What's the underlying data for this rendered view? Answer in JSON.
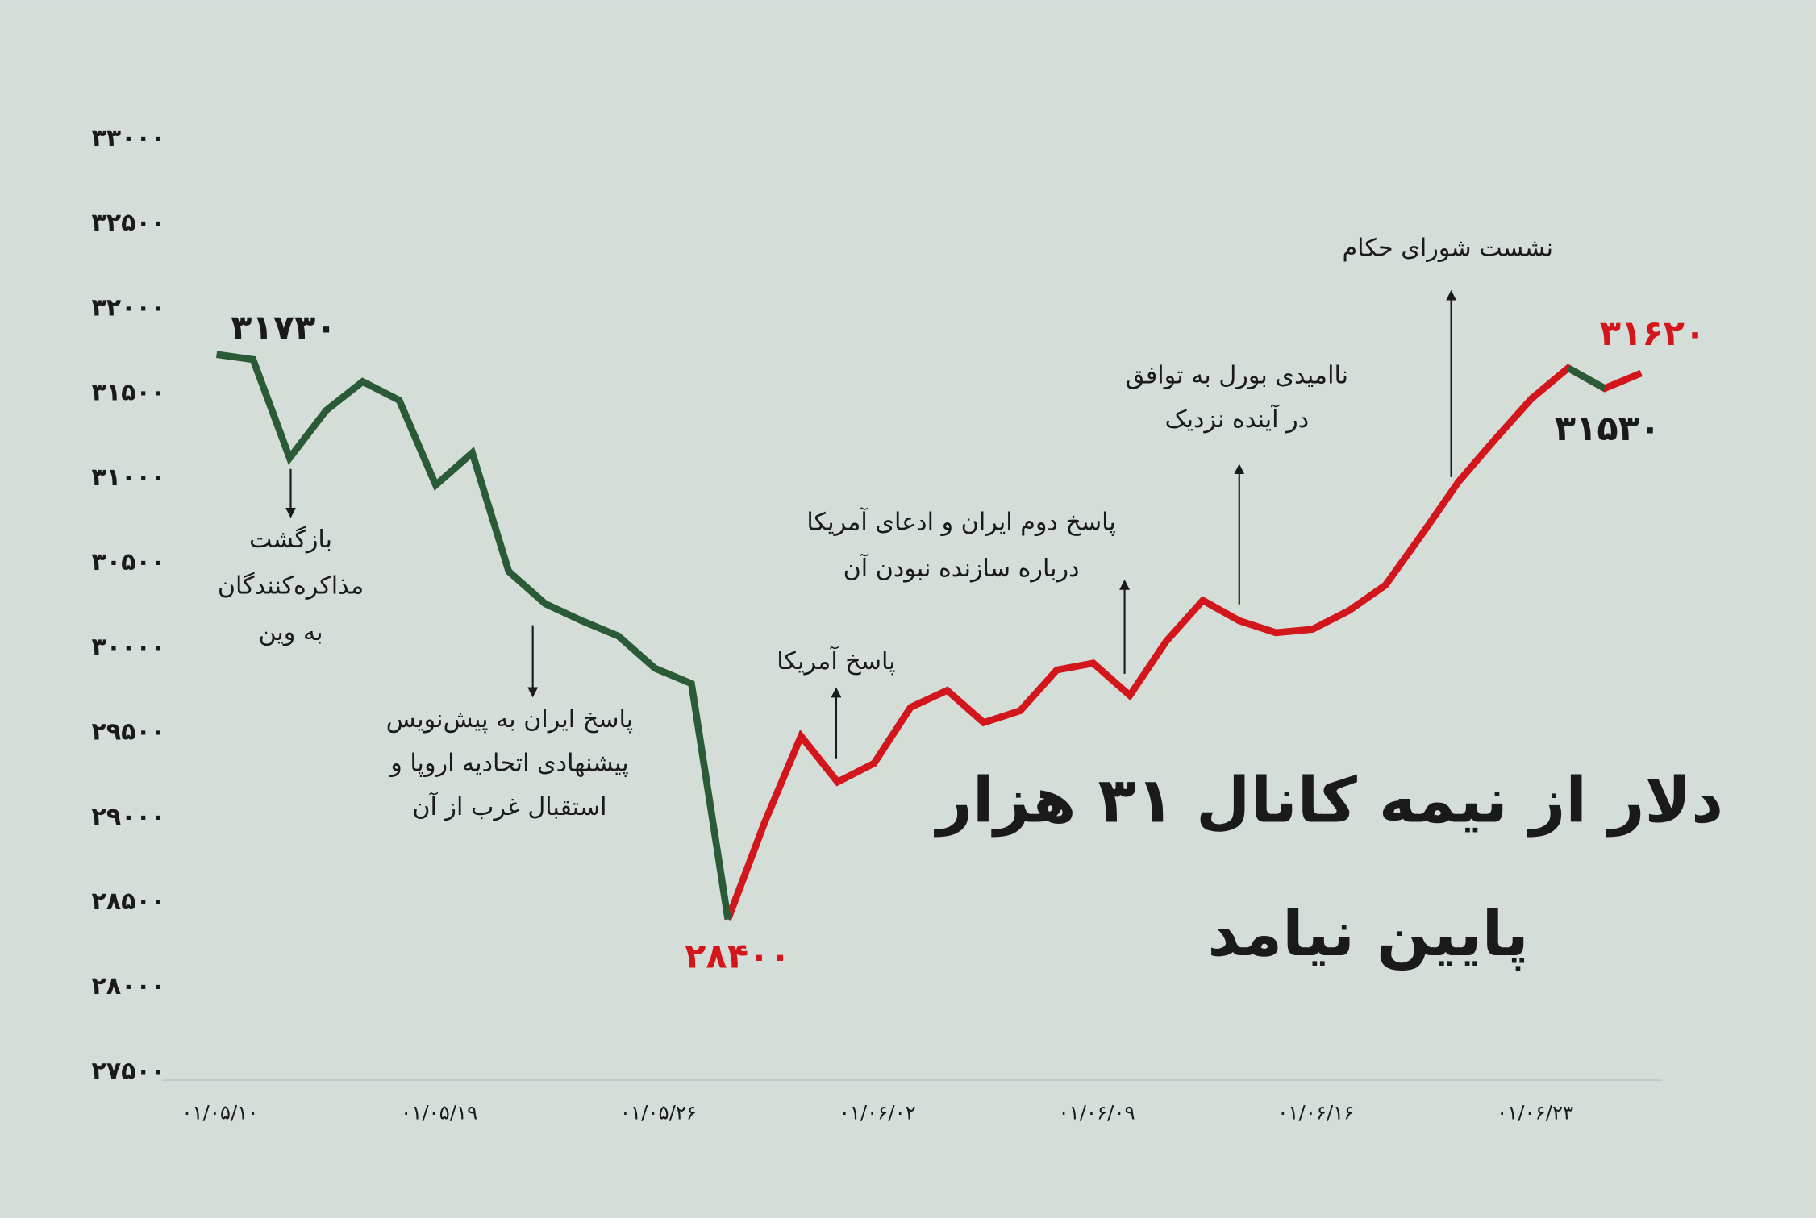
{
  "chart_data": {
    "type": "line",
    "title": [
      "دلار از نیمه کانال ۳۱ هزار",
      "پایین نیامد"
    ],
    "categories": [
      "۰۱/۰۵/۱۰",
      null,
      null,
      null,
      null,
      null,
      "۰۱/۰۵/۱۹",
      null,
      null,
      null,
      null,
      null,
      "۰۱/۰۵/۲۶",
      null,
      null,
      null,
      null,
      null,
      "۰۱/۰۶/۰۲",
      null,
      null,
      null,
      null,
      null,
      "۰۱/۰۶/۰۹",
      null,
      null,
      null,
      null,
      null,
      "۰۱/۰۶/۱۶",
      null,
      null,
      null,
      null,
      null,
      "۰۱/۰۶/۲۳",
      null,
      null,
      null
    ],
    "series": [
      {
        "color": "#2b5a36",
        "values": [
          31730,
          31700,
          31120,
          31400,
          31570,
          31460,
          30960,
          31150,
          30450,
          30260,
          30160,
          30070,
          29880,
          29790,
          28400,
          null,
          null,
          null,
          null,
          null,
          null,
          null,
          null,
          null,
          null,
          null,
          null,
          null,
          null,
          null,
          null,
          null,
          null,
          null,
          null,
          null,
          null,
          31650,
          31530,
          null
        ],
        "value_labels": [
          "۳۱۷۳۰",
          null,
          null,
          null,
          null,
          null,
          null,
          null,
          null,
          null,
          null,
          null,
          null,
          null,
          null,
          null,
          null,
          null,
          null,
          null,
          null,
          null,
          null,
          null,
          null,
          null,
          null,
          null,
          null,
          null,
          null,
          null,
          null,
          null,
          null,
          null,
          null,
          null,
          "۳۱۵۳۰",
          null
        ]
      },
      {
        "color": "#d3151c",
        "values": [
          null,
          null,
          null,
          null,
          null,
          null,
          null,
          null,
          null,
          null,
          null,
          null,
          null,
          null,
          28400,
          28970,
          29480,
          29210,
          29320,
          29650,
          29750,
          29560,
          29630,
          29870,
          29910,
          29720,
          30040,
          30280,
          30160,
          30090,
          30110,
          30220,
          30370,
          30670,
          30980,
          31230,
          31470,
          31650,
          31530,
          31620
        ],
        "value_labels": [
          null,
          null,
          null,
          null,
          null,
          null,
          null,
          null,
          null,
          null,
          null,
          null,
          null,
          null,
          "۲۸۴۰۰",
          null,
          null,
          null,
          null,
          null,
          null,
          null,
          null,
          null,
          null,
          null,
          null,
          null,
          null,
          null,
          null,
          null,
          null,
          null,
          null,
          null,
          null,
          null,
          null,
          "۳۱۶۲۰"
        ]
      }
    ],
    "ylim": [
      27500,
      33000
    ],
    "yticks": [
      {
        "value": 27500,
        "label": "۲۷۵۰۰"
      },
      {
        "value": 28000,
        "label": "۲۸۰۰۰"
      },
      {
        "value": 28500,
        "label": "۲۸۵۰۰"
      },
      {
        "value": 29000,
        "label": "۲۹۰۰۰"
      },
      {
        "value": 29500,
        "label": "۲۹۵۰۰"
      },
      {
        "value": 30000,
        "label": "۳۰۰۰۰"
      },
      {
        "value": 30500,
        "label": "۳۰۵۰۰"
      },
      {
        "value": 31000,
        "label": "۳۱۰۰۰"
      },
      {
        "value": 31500,
        "label": "۳۱۵۰۰"
      },
      {
        "value": 32000,
        "label": "۳۲۰۰۰"
      },
      {
        "value": 32500,
        "label": "۳۲۵۰۰"
      },
      {
        "value": 33000,
        "label": "۳۳۰۰۰"
      }
    ],
    "grid": false,
    "annotations": [
      [
        "بازگشت",
        "مذاکره‌کنندگان",
        "به وین"
      ],
      [
        "پاسخ ایران به پیش‌نویس",
        "پیشنهادی اتحادیه اروپا و",
        "استقبال غرب از آن"
      ],
      [
        "پاسخ آمریکا"
      ],
      [
        "پاسخ دوم ایران و ادعای آمریکا",
        "درباره سازنده نبودن آن"
      ],
      [
        "ناامیدی بورل به توافق",
        "در آینده نزدیک"
      ],
      [
        "نشست شورای حکام"
      ]
    ]
  }
}
